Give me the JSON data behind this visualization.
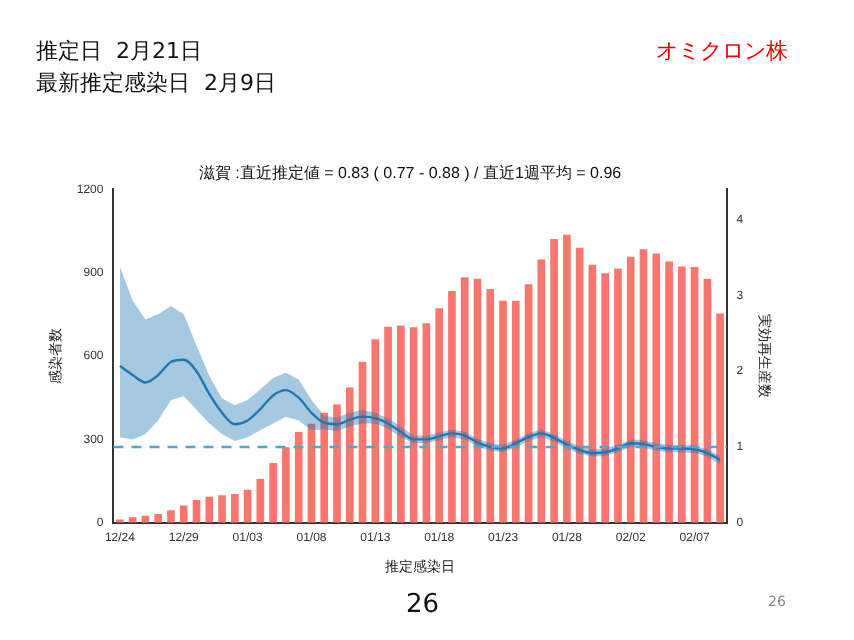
{
  "chart_data": {
    "type": "bar",
    "title": "滋賀 :直近推定値 = 0.83 ( 0.77 - 0.88 ) / 直近1週平均 = 0.96",
    "xlabel": "推定感染日",
    "ylabel": "感染者数",
    "y2label": "実効再生産数",
    "annotations": [
      "推定日  2月21日",
      "最新推定感染日  2月9日",
      "オミクロン株",
      "26",
      "26"
    ],
    "categories": [
      "12/24",
      null,
      null,
      null,
      null,
      "12/29",
      null,
      null,
      null,
      null,
      "01/03",
      null,
      null,
      null,
      null,
      "01/08",
      null,
      null,
      null,
      null,
      "01/13",
      null,
      null,
      null,
      null,
      "01/18",
      null,
      null,
      null,
      null,
      "01/23",
      null,
      null,
      null,
      null,
      "01/28",
      null,
      null,
      null,
      null,
      "02/02",
      null,
      null,
      null,
      null,
      "02/07",
      null,
      null
    ],
    "series": [
      {
        "color": "#f8766d",
        "values": [
          12,
          20,
          25,
          32,
          45,
          62,
          82,
          94,
          99,
          104,
          119,
          158,
          215,
          272,
          327,
          356,
          396,
          426,
          487,
          579,
          660,
          705,
          710,
          703,
          718,
          772,
          834,
          883,
          878,
          841,
          799,
          799,
          858,
          947,
          1021,
          1036,
          989,
          928,
          898,
          915,
          957,
          984,
          969,
          940,
          922,
          920,
          878,
          753
        ]
      },
      {
        "type": "line",
        "axis": "y2",
        "color": "#1f77b4",
        "values": [
          2.07,
          1.95,
          1.85,
          1.95,
          2.12,
          2.15,
          2.0,
          1.7,
          1.45,
          1.3,
          1.35,
          1.5,
          1.68,
          1.75,
          1.65,
          1.45,
          1.32,
          1.3,
          1.36,
          1.4,
          1.38,
          1.31,
          1.2,
          1.1,
          1.1,
          1.14,
          1.18,
          1.15,
          1.06,
          1.0,
          0.98,
          1.05,
          1.13,
          1.18,
          1.12,
          1.03,
          0.96,
          0.92,
          0.93,
          0.98,
          1.05,
          1.04,
          1.0,
          0.98,
          0.98,
          0.97,
          0.92,
          0.83
        ],
        "lower": [
          1.13,
          1.1,
          1.17,
          1.35,
          1.62,
          1.67,
          1.49,
          1.31,
          1.17,
          1.08,
          1.13,
          1.22,
          1.31,
          1.4,
          1.35,
          1.22,
          1.23,
          1.21,
          1.27,
          1.31,
          1.31,
          1.24,
          1.13,
          1.05,
          1.05,
          1.09,
          1.13,
          1.1,
          1.01,
          0.95,
          0.93,
          1.0,
          1.08,
          1.13,
          1.07,
          0.98,
          0.91,
          0.87,
          0.88,
          0.93,
          1.0,
          0.99,
          0.95,
          0.93,
          0.93,
          0.92,
          0.87,
          0.77
        ],
        "upper": [
          3.38,
          2.93,
          2.68,
          2.75,
          2.86,
          2.75,
          2.34,
          1.94,
          1.64,
          1.55,
          1.62,
          1.76,
          1.91,
          1.98,
          1.89,
          1.62,
          1.41,
          1.39,
          1.45,
          1.49,
          1.45,
          1.38,
          1.27,
          1.15,
          1.15,
          1.19,
          1.23,
          1.2,
          1.11,
          1.05,
          1.03,
          1.1,
          1.18,
          1.23,
          1.17,
          1.08,
          1.01,
          0.97,
          0.98,
          1.03,
          1.1,
          1.09,
          1.05,
          1.03,
          1.03,
          1.02,
          0.97,
          0.88
        ]
      }
    ],
    "ylim": [
      0,
      1200
    ],
    "yticks": [
      0,
      300,
      600,
      900,
      1200
    ],
    "y2lim": [
      0,
      4.4
    ],
    "y2ticks": [
      0,
      1,
      2,
      3,
      4
    ],
    "ref_lines": [
      {
        "axis": "y2",
        "value": 1,
        "color": "#4fa9cf",
        "line_style": "dashed"
      }
    ],
    "grid": false,
    "legend": false
  }
}
